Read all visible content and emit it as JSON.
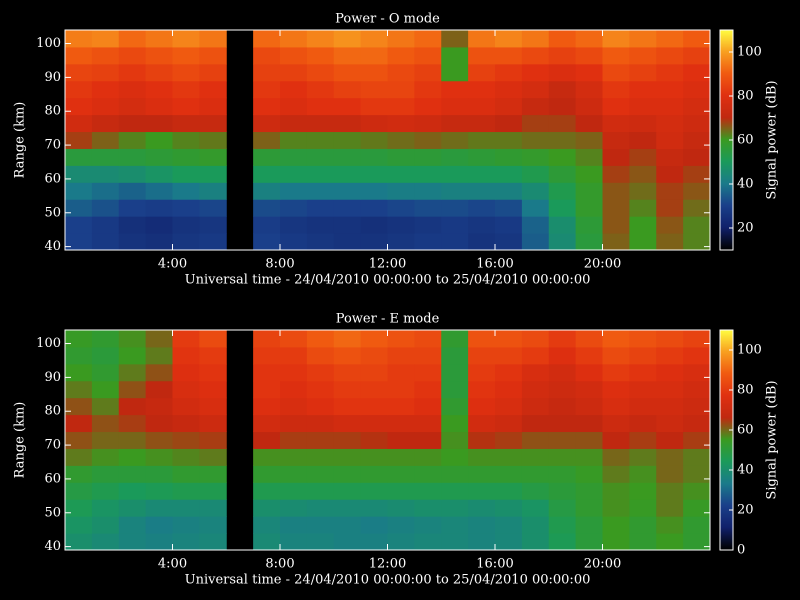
{
  "chart_data": [
    {
      "type": "heatmap",
      "title": "Power - O mode",
      "xlabel": "Universal time - 24/04/2010 00:00:00 to 25/04/2010 00:00:00",
      "ylabel": "Range (km)",
      "colorbar_label": "Signal power (dB)",
      "x": [
        0,
        1,
        2,
        3,
        4,
        5,
        6,
        7,
        8,
        9,
        10,
        11,
        12,
        13,
        14,
        15,
        16,
        17,
        18,
        19,
        20,
        21,
        22,
        23
      ],
      "y": [
        39,
        44,
        49,
        54,
        59,
        64,
        69,
        74,
        79,
        84,
        89,
        94,
        99
      ],
      "values": [
        [
          30,
          28,
          26,
          25,
          27,
          28,
          null,
          30,
          28,
          27,
          26,
          26,
          27,
          28,
          28,
          26,
          27,
          35,
          45,
          55,
          65,
          60,
          65,
          62
        ],
        [
          30,
          28,
          25,
          24,
          26,
          27,
          null,
          29,
          27,
          26,
          26,
          25,
          26,
          27,
          28,
          27,
          28,
          36,
          46,
          56,
          66,
          60,
          66,
          62
        ],
        [
          35,
          33,
          30,
          29,
          30,
          31,
          null,
          32,
          31,
          30,
          30,
          30,
          31,
          32,
          32,
          31,
          32,
          40,
          50,
          58,
          66,
          62,
          68,
          64
        ],
        [
          40,
          38,
          36,
          38,
          40,
          42,
          null,
          42,
          40,
          40,
          40,
          40,
          41,
          41,
          42,
          42,
          42,
          45,
          52,
          58,
          66,
          64,
          68,
          66
        ],
        [
          45,
          45,
          46,
          48,
          50,
          50,
          null,
          50,
          50,
          50,
          50,
          50,
          50,
          50,
          50,
          50,
          50,
          52,
          56,
          60,
          68,
          66,
          70,
          68
        ],
        [
          55,
          55,
          55,
          56,
          57,
          58,
          null,
          56,
          55,
          55,
          55,
          55,
          56,
          56,
          55,
          56,
          57,
          58,
          60,
          62,
          70,
          68,
          72,
          70
        ],
        [
          68,
          65,
          62,
          60,
          62,
          63,
          null,
          65,
          62,
          62,
          62,
          63,
          64,
          65,
          64,
          63,
          63,
          64,
          64,
          65,
          72,
          70,
          75,
          72
        ],
        [
          75,
          72,
          70,
          70,
          72,
          72,
          null,
          74,
          72,
          72,
          72,
          74,
          75,
          74,
          72,
          72,
          70,
          68,
          68,
          70,
          75,
          74,
          76,
          74
        ],
        [
          80,
          78,
          76,
          78,
          80,
          78,
          null,
          80,
          78,
          80,
          80,
          82,
          82,
          80,
          78,
          78,
          76,
          72,
          70,
          74,
          80,
          78,
          78,
          76
        ],
        [
          82,
          80,
          78,
          80,
          82,
          80,
          null,
          82,
          80,
          82,
          84,
          85,
          85,
          82,
          80,
          80,
          78,
          76,
          72,
          76,
          82,
          80,
          80,
          78
        ],
        [
          85,
          84,
          82,
          84,
          86,
          84,
          null,
          84,
          84,
          86,
          88,
          88,
          86,
          84,
          60,
          84,
          82,
          80,
          78,
          80,
          86,
          84,
          82,
          80
        ],
        [
          90,
          88,
          86,
          88,
          90,
          88,
          null,
          86,
          88,
          90,
          92,
          92,
          90,
          88,
          60,
          88,
          88,
          86,
          84,
          86,
          90,
          88,
          86,
          84
        ],
        [
          95,
          96,
          92,
          94,
          96,
          94,
          null,
          92,
          94,
          96,
          98,
          96,
          94,
          92,
          65,
          94,
          96,
          94,
          90,
          92,
          96,
          94,
          92,
          90
        ]
      ],
      "xlim": [
        0,
        24
      ],
      "ylim": [
        39,
        104
      ],
      "xticks": [
        {
          "value": 4,
          "label": "4:00"
        },
        {
          "value": 8,
          "label": "8:00"
        },
        {
          "value": 12,
          "label": "12:00"
        },
        {
          "value": 16,
          "label": "16:00"
        },
        {
          "value": 20,
          "label": "20:00"
        }
      ],
      "yticks": [
        40,
        50,
        60,
        70,
        80,
        90,
        100
      ],
      "clim": [
        10,
        110
      ],
      "cticks": [
        20,
        40,
        60,
        80,
        100
      ],
      "colormap": [
        "#000000",
        "#10206a",
        "#1a3f8a",
        "#1a7a8a",
        "#1a9a5a",
        "#3a9a20",
        "#c02810",
        "#e03010",
        "#f05a10",
        "#f8a020",
        "#ffff40"
      ]
    },
    {
      "type": "heatmap",
      "title": "Power - E mode",
      "xlabel": "Universal time - 24/04/2010 00:00:00 to 25/04/2010 00:00:00",
      "ylabel": "Range (km)",
      "colorbar_label": "Signal power (dB)",
      "x": [
        0,
        1,
        2,
        3,
        4,
        5,
        6,
        7,
        8,
        9,
        10,
        11,
        12,
        13,
        14,
        15,
        16,
        17,
        18,
        19,
        20,
        21,
        22,
        23
      ],
      "y": [
        39,
        44,
        49,
        54,
        59,
        64,
        69,
        74,
        79,
        84,
        89,
        94,
        99
      ],
      "values": [
        [
          40,
          38,
          36,
          35,
          36,
          37,
          null,
          38,
          36,
          36,
          35,
          35,
          36,
          37,
          37,
          36,
          37,
          40,
          45,
          50,
          55,
          52,
          55,
          52
        ],
        [
          42,
          40,
          36,
          34,
          35,
          36,
          null,
          37,
          35,
          35,
          35,
          34,
          35,
          36,
          37,
          36,
          37,
          40,
          46,
          50,
          55,
          52,
          56,
          52
        ],
        [
          45,
          42,
          40,
          38,
          38,
          38,
          null,
          40,
          39,
          38,
          38,
          38,
          39,
          40,
          40,
          39,
          40,
          42,
          48,
          52,
          56,
          54,
          58,
          54
        ],
        [
          48,
          46,
          44,
          45,
          46,
          46,
          null,
          46,
          46,
          46,
          46,
          46,
          46,
          46,
          46,
          46,
          46,
          48,
          50,
          52,
          56,
          55,
          58,
          56
        ],
        [
          52,
          50,
          50,
          50,
          52,
          52,
          null,
          52,
          52,
          52,
          52,
          52,
          52,
          52,
          52,
          52,
          52,
          52,
          52,
          54,
          58,
          56,
          60,
          58
        ],
        [
          58,
          56,
          55,
          56,
          57,
          58,
          null,
          56,
          56,
          56,
          56,
          56,
          56,
          56,
          55,
          56,
          56,
          56,
          56,
          56,
          60,
          58,
          60,
          58
        ],
        [
          62,
          60,
          60,
          62,
          63,
          64,
          null,
          66,
          64,
          64,
          64,
          65,
          66,
          66,
          56,
          65,
          64,
          62,
          62,
          62,
          66,
          64,
          66,
          64
        ],
        [
          66,
          62,
          64,
          66,
          68,
          70,
          null,
          72,
          70,
          70,
          72,
          72,
          72,
          72,
          55,
          72,
          70,
          66,
          66,
          66,
          70,
          68,
          70,
          68
        ],
        [
          62,
          58,
          66,
          68,
          72,
          74,
          null,
          76,
          74,
          76,
          78,
          78,
          78,
          76,
          52,
          76,
          74,
          70,
          68,
          70,
          74,
          72,
          72,
          70
        ],
        [
          58,
          55,
          62,
          66,
          74,
          76,
          null,
          78,
          76,
          78,
          80,
          80,
          80,
          78,
          50,
          78,
          76,
          72,
          70,
          72,
          76,
          74,
          74,
          72
        ],
        [
          55,
          52,
          58,
          62,
          76,
          78,
          null,
          78,
          78,
          80,
          82,
          82,
          80,
          80,
          50,
          80,
          78,
          74,
          72,
          76,
          80,
          78,
          76,
          74
        ],
        [
          52,
          50,
          55,
          58,
          78,
          80,
          null,
          80,
          80,
          84,
          86,
          84,
          82,
          82,
          50,
          82,
          82,
          80,
          76,
          80,
          84,
          82,
          80,
          78
        ],
        [
          54,
          52,
          56,
          60,
          80,
          84,
          null,
          82,
          84,
          88,
          90,
          88,
          86,
          84,
          52,
          86,
          86,
          84,
          80,
          84,
          88,
          86,
          84,
          82
        ]
      ],
      "xlim": [
        0,
        24
      ],
      "ylim": [
        39,
        104
      ],
      "xticks": [
        {
          "value": 4,
          "label": "4:00"
        },
        {
          "value": 8,
          "label": "8:00"
        },
        {
          "value": 12,
          "label": "12:00"
        },
        {
          "value": 16,
          "label": "16:00"
        },
        {
          "value": 20,
          "label": "20:00"
        }
      ],
      "yticks": [
        40,
        50,
        60,
        70,
        80,
        90,
        100
      ],
      "clim": [
        0,
        110
      ],
      "cticks": [
        0,
        20,
        40,
        60,
        80,
        100
      ],
      "colormap": [
        "#000000",
        "#10206a",
        "#1a3f8a",
        "#1a7a8a",
        "#1a9a5a",
        "#3a9a20",
        "#c02810",
        "#e03010",
        "#f05a10",
        "#f8a020",
        "#ffff40"
      ]
    }
  ]
}
